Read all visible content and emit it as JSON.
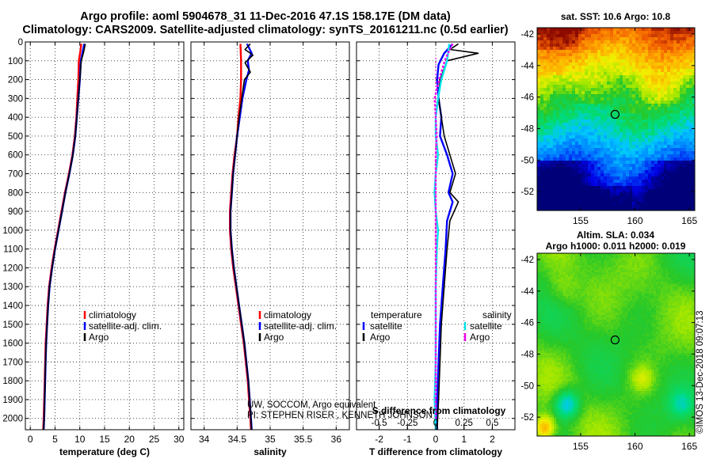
{
  "header": {
    "line1": "Argo profile: aoml 5904678_31 11-Dec-2016 47.1S 158.17E (DM data)",
    "line2": "Climatology: CARS2009. Satellite-adjusted climatology: synTS_20161211.nc (0.5d earlier)"
  },
  "colors": {
    "climatology": "#ff0000",
    "satellite_adj": "#0000ff",
    "argo": "#000000",
    "salinity_satellite": "#00e5ee",
    "salinity_argo": "#ee00ee"
  },
  "chart_data": [
    {
      "type": "line",
      "panel": "temperature",
      "xlabel": "temperature (deg C)",
      "ylabel": "",
      "xlim": [
        -1,
        31
      ],
      "ylim": [
        2060,
        0
      ],
      "xticks": [
        0,
        5,
        10,
        15,
        20,
        25,
        30
      ],
      "yticks": [
        0,
        100,
        200,
        300,
        400,
        500,
        600,
        700,
        800,
        900,
        1000,
        1100,
        1200,
        1300,
        1400,
        1500,
        1600,
        1700,
        1800,
        1900,
        2000
      ],
      "ytick_labels": [
        "0",
        "100",
        "200",
        "300",
        "400",
        "500",
        "600",
        "700",
        "800",
        "900",
        "1000",
        "1100",
        "1200",
        "1300",
        "1400",
        "1500",
        "1600",
        "1700",
        "1800",
        "1900",
        "2000"
      ],
      "grid": true,
      "legend": {
        "position": "lower-right",
        "entries": [
          "climatology",
          "satellite-adj. clim.",
          "Argo"
        ]
      },
      "series": [
        {
          "name": "climatology",
          "color": "#ff0000",
          "points": [
            [
              10.3,
              10
            ],
            [
              10.1,
              50
            ],
            [
              9.8,
              100
            ],
            [
              9.7,
              200
            ],
            [
              9.5,
              300
            ],
            [
              9.3,
              400
            ],
            [
              9.0,
              500
            ],
            [
              8.5,
              600
            ],
            [
              7.8,
              700
            ],
            [
              7.0,
              800
            ],
            [
              6.3,
              900
            ],
            [
              5.6,
              1000
            ],
            [
              4.9,
              1100
            ],
            [
              4.3,
              1200
            ],
            [
              3.8,
              1300
            ],
            [
              3.5,
              1400
            ],
            [
              3.3,
              1500
            ],
            [
              3.1,
              1600
            ],
            [
              3.0,
              1700
            ],
            [
              2.9,
              1800
            ],
            [
              2.8,
              1900
            ],
            [
              2.7,
              2000
            ],
            [
              2.6,
              2060
            ]
          ]
        },
        {
          "name": "satellite-adj. clim.",
          "color": "#0000ff",
          "points": [
            [
              10.9,
              10
            ],
            [
              10.6,
              50
            ],
            [
              10.2,
              100
            ],
            [
              10.0,
              200
            ],
            [
              9.7,
              300
            ],
            [
              9.4,
              400
            ],
            [
              9.1,
              500
            ],
            [
              8.6,
              600
            ],
            [
              7.9,
              700
            ],
            [
              7.1,
              800
            ],
            [
              6.4,
              900
            ],
            [
              5.7,
              1000
            ],
            [
              5.0,
              1100
            ],
            [
              4.4,
              1200
            ],
            [
              3.9,
              1300
            ],
            [
              3.6,
              1400
            ],
            [
              3.4,
              1500
            ],
            [
              3.2,
              1600
            ],
            [
              3.1,
              1700
            ],
            [
              3.0,
              1800
            ],
            [
              2.9,
              1900
            ],
            [
              2.8,
              2000
            ],
            [
              2.7,
              2060
            ]
          ]
        },
        {
          "name": "Argo",
          "color": "#000000",
          "points": [
            [
              11.1,
              10
            ],
            [
              10.8,
              50
            ],
            [
              10.3,
              100
            ],
            [
              10.0,
              200
            ],
            [
              9.7,
              300
            ],
            [
              9.4,
              400
            ],
            [
              9.1,
              500
            ],
            [
              8.6,
              600
            ],
            [
              7.9,
              700
            ],
            [
              7.1,
              800
            ],
            [
              6.4,
              900
            ],
            [
              5.7,
              1000
            ],
            [
              5.0,
              1100
            ],
            [
              4.4,
              1200
            ],
            [
              3.9,
              1300
            ],
            [
              3.6,
              1400
            ],
            [
              3.4,
              1500
            ],
            [
              3.2,
              1600
            ],
            [
              3.1,
              1700
            ],
            [
              3.0,
              1800
            ],
            [
              2.9,
              1900
            ],
            [
              2.8,
              2000
            ],
            [
              2.7,
              2060
            ]
          ]
        }
      ]
    },
    {
      "type": "line",
      "panel": "salinity",
      "xlabel": "salinity",
      "ylabel": "",
      "xlim": [
        33.8,
        36.2
      ],
      "ylim": [
        2060,
        0
      ],
      "xticks": [
        34,
        34.5,
        35,
        35.5,
        36
      ],
      "xtick_labels": [
        "34",
        "34.5",
        "35",
        "35.5",
        "36"
      ],
      "grid": true,
      "legend": {
        "position": "lower-right",
        "entries": [
          "climatology",
          "satellite-adj. clim.",
          "Argo"
        ]
      },
      "annotation": [
        "UW, SOCCOM, Argo equivalent",
        "PI: STEPHEN RISER , KENNETH JOHNSON"
      ],
      "series": [
        {
          "name": "climatology",
          "color": "#ff0000",
          "points": [
            [
              34.55,
              10
            ],
            [
              34.56,
              100
            ],
            [
              34.56,
              200
            ],
            [
              34.55,
              300
            ],
            [
              34.52,
              400
            ],
            [
              34.5,
              500
            ],
            [
              34.46,
              600
            ],
            [
              34.43,
              700
            ],
            [
              34.41,
              800
            ],
            [
              34.39,
              900
            ],
            [
              34.39,
              1000
            ],
            [
              34.41,
              1100
            ],
            [
              34.44,
              1200
            ],
            [
              34.48,
              1300
            ],
            [
              34.52,
              1400
            ],
            [
              34.56,
              1500
            ],
            [
              34.6,
              1600
            ],
            [
              34.63,
              1700
            ],
            [
              34.66,
              1800
            ],
            [
              34.68,
              1900
            ],
            [
              34.7,
              2000
            ],
            [
              34.71,
              2060
            ]
          ]
        },
        {
          "name": "satellite-adj. clim.",
          "color": "#0000ff",
          "points": [
            [
              34.65,
              10
            ],
            [
              34.72,
              60
            ],
            [
              34.66,
              100
            ],
            [
              34.68,
              150
            ],
            [
              34.64,
              200
            ],
            [
              34.58,
              300
            ],
            [
              34.54,
              400
            ],
            [
              34.5,
              500
            ],
            [
              34.47,
              600
            ],
            [
              34.44,
              700
            ],
            [
              34.42,
              800
            ],
            [
              34.4,
              900
            ],
            [
              34.4,
              1000
            ],
            [
              34.42,
              1100
            ],
            [
              34.45,
              1200
            ],
            [
              34.49,
              1300
            ],
            [
              34.53,
              1400
            ],
            [
              34.57,
              1500
            ],
            [
              34.61,
              1600
            ],
            [
              34.64,
              1700
            ],
            [
              34.67,
              1800
            ],
            [
              34.69,
              1900
            ],
            [
              34.71,
              2000
            ],
            [
              34.72,
              2060
            ]
          ]
        },
        {
          "name": "Argo",
          "color": "#000000",
          "points": [
            [
              34.7,
              10
            ],
            [
              34.62,
              40
            ],
            [
              34.74,
              70
            ],
            [
              34.62,
              110
            ],
            [
              34.7,
              160
            ],
            [
              34.61,
              200
            ],
            [
              34.57,
              300
            ],
            [
              34.53,
              400
            ],
            [
              34.5,
              500
            ],
            [
              34.47,
              600
            ],
            [
              34.44,
              700
            ],
            [
              34.42,
              800
            ],
            [
              34.4,
              900
            ],
            [
              34.4,
              1000
            ],
            [
              34.42,
              1100
            ],
            [
              34.45,
              1200
            ],
            [
              34.49,
              1300
            ],
            [
              34.53,
              1400
            ],
            [
              34.57,
              1500
            ],
            [
              34.61,
              1600
            ],
            [
              34.64,
              1700
            ],
            [
              34.67,
              1800
            ],
            [
              34.69,
              1900
            ],
            [
              34.71,
              2000
            ],
            [
              34.72,
              2060
            ]
          ]
        }
      ]
    },
    {
      "type": "line",
      "panel": "difference",
      "xlabel": "T difference from climatology",
      "xlabel_top": "S difference from climatology",
      "ylabel": "",
      "xlim": [
        -2.8,
        2.8
      ],
      "ylim": [
        2060,
        0
      ],
      "xticks": [
        -2,
        -1,
        0,
        1,
        2
      ],
      "xtick_labels": [
        "-2",
        "-1",
        "0",
        "1",
        "2"
      ],
      "sticks": [
        -0.5,
        -0.25,
        0,
        0.25,
        0.5
      ],
      "stick_labels": [
        "-0.5",
        "-0.25",
        "0",
        "0.25",
        "0.5"
      ],
      "slim": [
        -0.7,
        0.7
      ],
      "grid": true,
      "legend": {
        "position": "lower",
        "temperature_header": "temperature",
        "salinity_header": "salinity",
        "temperature_entries": [
          "satellite",
          "Argo"
        ],
        "salinity_entries": [
          "satellite",
          "Argo"
        ]
      },
      "series": [
        {
          "name": "satellite",
          "group": "temperature",
          "color": "#0000ff",
          "points": [
            [
              0.6,
              10
            ],
            [
              0.3,
              60
            ],
            [
              0.1,
              120
            ],
            [
              0.05,
              200
            ],
            [
              0.1,
              300
            ],
            [
              0.2,
              400
            ],
            [
              0.15,
              500
            ],
            [
              0.4,
              600
            ],
            [
              0.6,
              700
            ],
            [
              0.45,
              800
            ],
            [
              0.6,
              850
            ],
            [
              0.4,
              950
            ],
            [
              0.35,
              1100
            ],
            [
              0.25,
              1300
            ],
            [
              0.15,
              1500
            ],
            [
              0.1,
              1700
            ],
            [
              0.05,
              1900
            ],
            [
              0.05,
              2060
            ]
          ]
        },
        {
          "name": "Argo",
          "group": "temperature",
          "color": "#000000",
          "points": [
            [
              0.8,
              10
            ],
            [
              0.5,
              40
            ],
            [
              1.5,
              60
            ],
            [
              0.4,
              100
            ],
            [
              0.15,
              200
            ],
            [
              0.1,
              300
            ],
            [
              0.2,
              400
            ],
            [
              0.3,
              500
            ],
            [
              0.5,
              600
            ],
            [
              0.7,
              700
            ],
            [
              0.5,
              800
            ],
            [
              0.8,
              850
            ],
            [
              0.5,
              950
            ],
            [
              0.4,
              1100
            ],
            [
              0.3,
              1300
            ],
            [
              0.2,
              1500
            ],
            [
              0.15,
              1700
            ],
            [
              0.1,
              1900
            ],
            [
              0.05,
              2060
            ]
          ]
        },
        {
          "name": "satellite",
          "group": "salinity",
          "color": "#00e5ee",
          "points": [
            [
              0.12,
              10
            ],
            [
              0.1,
              100
            ],
            [
              0.05,
              200
            ],
            [
              0.02,
              300
            ],
            [
              0.0,
              400
            ],
            [
              0.0,
              500
            ],
            [
              0.02,
              600
            ],
            [
              0.0,
              700
            ],
            [
              -0.01,
              800
            ],
            [
              0.0,
              900
            ],
            [
              0.02,
              1000
            ],
            [
              0.01,
              1100
            ],
            [
              0.0,
              1300
            ],
            [
              0.0,
              1500
            ],
            [
              0.0,
              1700
            ],
            [
              -0.01,
              1900
            ],
            [
              0.0,
              2060
            ]
          ]
        },
        {
          "name": "Argo",
          "group": "salinity",
          "color": "#ee00ee",
          "points": [
            [
              0.15,
              10
            ],
            [
              0.1,
              70
            ],
            [
              0.08,
              100
            ],
            [
              0.03,
              200
            ],
            [
              -0.01,
              300
            ],
            [
              0.0,
              400
            ],
            [
              0.01,
              500
            ],
            [
              0.0,
              600
            ],
            [
              0.0,
              800
            ],
            [
              0.0,
              1000
            ],
            [
              0.0,
              1200
            ],
            [
              0.0,
              1400
            ],
            [
              0.0,
              1600
            ],
            [
              0.0,
              1800
            ],
            [
              0.0,
              2000
            ]
          ]
        }
      ]
    },
    {
      "type": "heatmap",
      "panel": "sst-map",
      "title": "sat. SST: 10.6 Argo: 10.8",
      "xlim": [
        151,
        165.5
      ],
      "ylim": [
        -53.2,
        -41.6
      ],
      "xticks": [
        155,
        160,
        165
      ],
      "yticks": [
        -42,
        -44,
        -46,
        -48,
        -50,
        -52
      ],
      "marker": {
        "lon": 158.17,
        "lat": -47.1
      }
    },
    {
      "type": "heatmap",
      "panel": "sla-map",
      "title_line1": "Altim. SLA: 0.034",
      "title_line2": "Argo h1000: 0.011 h2000: 0.019",
      "xlim": [
        151,
        165.5
      ],
      "ylim": [
        -53.2,
        -41.6
      ],
      "xticks": [
        155,
        160,
        165
      ],
      "yticks": [
        -42,
        -44,
        -46,
        -48,
        -50,
        -52
      ],
      "marker": {
        "lon": 158.17,
        "lat": -47.1
      }
    }
  ],
  "footer": {
    "stamp": "©IMOS 13-Dec-2018 09:07:13"
  }
}
